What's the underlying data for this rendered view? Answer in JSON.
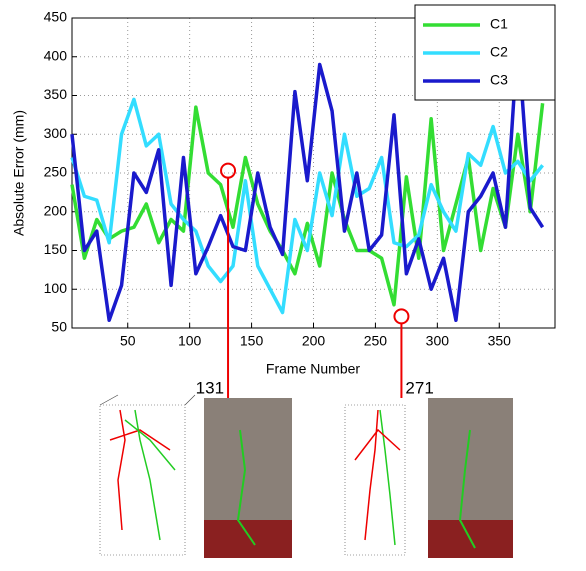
{
  "chart_data": {
    "type": "line",
    "x_label": "Frame Number",
    "y_label": "Absolute Error (mm)",
    "x": [
      5,
      15,
      25,
      35,
      45,
      55,
      65,
      75,
      85,
      95,
      105,
      115,
      125,
      135,
      145,
      155,
      165,
      175,
      185,
      195,
      205,
      215,
      225,
      235,
      245,
      255,
      265,
      275,
      285,
      295,
      305,
      315,
      325,
      335,
      345,
      355,
      365,
      375,
      385
    ],
    "series": [
      {
        "name": "C1",
        "color": "#33dd33",
        "values": [
          235,
          140,
          190,
          165,
          175,
          180,
          210,
          160,
          190,
          175,
          335,
          250,
          235,
          180,
          270,
          210,
          175,
          150,
          120,
          185,
          130,
          250,
          190,
          150,
          150,
          140,
          80,
          245,
          140,
          320,
          150,
          210,
          270,
          150,
          230,
          180,
          300,
          200,
          340
        ]
      },
      {
        "name": "C2",
        "color": "#33ddff",
        "values": [
          270,
          220,
          215,
          160,
          300,
          345,
          285,
          300,
          210,
          190,
          175,
          130,
          110,
          130,
          240,
          130,
          100,
          70,
          190,
          150,
          250,
          195,
          300,
          220,
          230,
          270,
          160,
          155,
          170,
          235,
          200,
          175,
          275,
          260,
          310,
          250,
          265,
          240,
          260
        ]
      },
      {
        "name": "C3",
        "color": "#1a1acc",
        "values": [
          300,
          150,
          175,
          60,
          105,
          250,
          225,
          280,
          105,
          270,
          120,
          155,
          195,
          155,
          150,
          250,
          180,
          145,
          355,
          240,
          390,
          330,
          175,
          250,
          150,
          170,
          325,
          120,
          165,
          100,
          140,
          60,
          200,
          220,
          250,
          180,
          425,
          205,
          180
        ]
      }
    ],
    "xlim": [
      5,
      395
    ],
    "ylim": [
      50,
      450
    ],
    "xticks": [
      50,
      100,
      150,
      200,
      250,
      300,
      350
    ],
    "yticks": [
      50,
      100,
      150,
      200,
      250,
      300,
      350,
      400,
      450
    ],
    "grid": true,
    "legend": "upper right",
    "annotations": [
      {
        "label": "131",
        "x": 131,
        "y": 253
      },
      {
        "label": "271",
        "x": 271,
        "y": 65
      }
    ]
  }
}
